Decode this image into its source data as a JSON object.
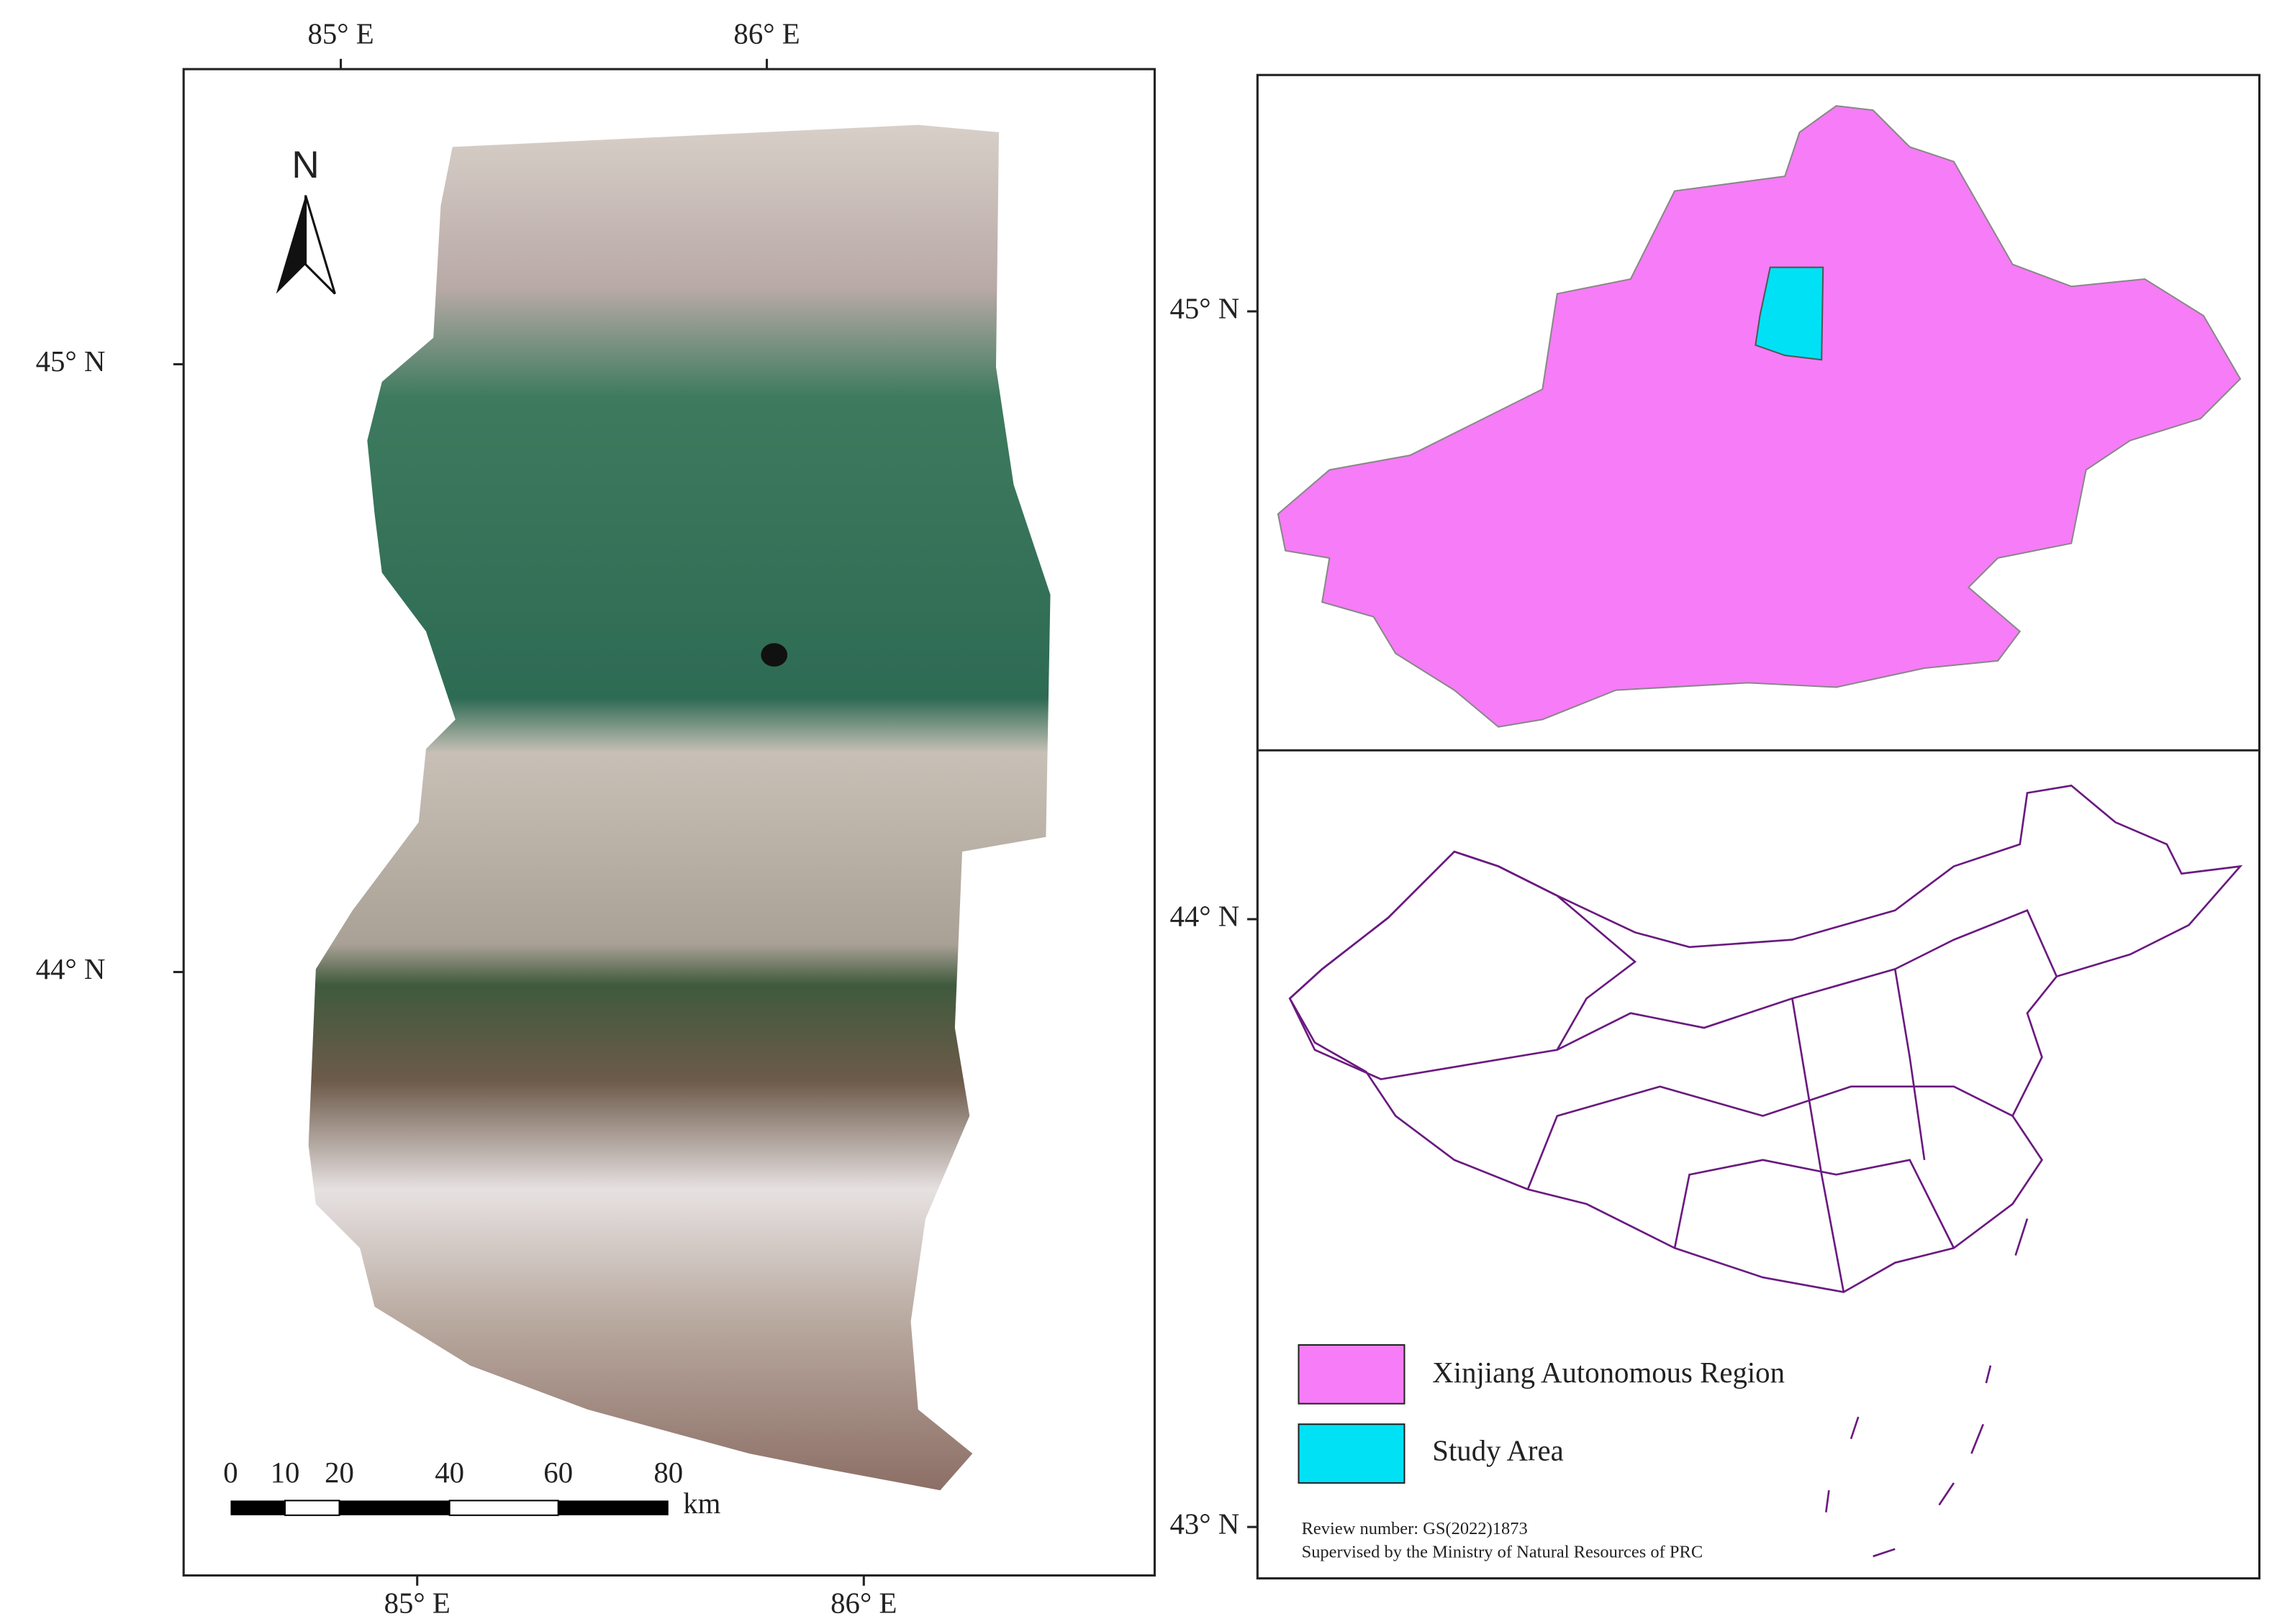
{
  "map": {
    "longitude_labels_top": [
      "85° E",
      "86° E"
    ],
    "longitude_labels_bottom": [
      "85° E",
      "86° E"
    ],
    "latitude_labels": [
      "45° N",
      "44° N"
    ],
    "north_arrow": "N",
    "scale_bar": {
      "labels": [
        "0",
        "10",
        "20",
        "40",
        "60",
        "80"
      ],
      "unit": "km"
    }
  },
  "inset": {
    "latitude_labels": [
      "45° N",
      "44° N",
      "43° N"
    ],
    "legend": [
      {
        "label": "Xinjiang Autonomous Region",
        "color": "#f77cf7"
      },
      {
        "label": "Study Area",
        "color": "#00e1f5"
      }
    ],
    "notes": [
      "Review number: GS(2022)1873",
      "Supervised by the Ministry of Natural Resources of PRC"
    ]
  }
}
